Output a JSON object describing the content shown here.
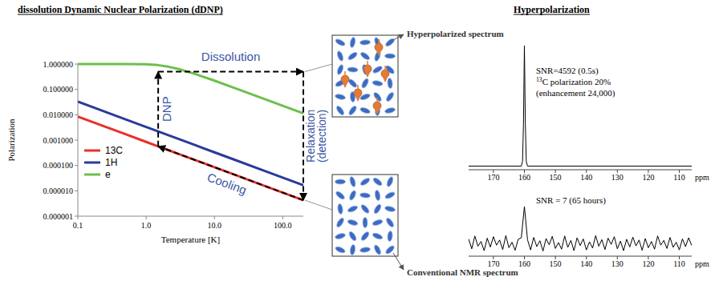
{
  "chart_data": [
    {
      "type": "line",
      "title": "dissolution Dynamic Nuclear Polarization (dDNP)",
      "xlabel": "Temperature [K]",
      "ylabel": "Polarization",
      "log": true,
      "grid": false,
      "legend": "left",
      "x": [
        0.1,
        0.5,
        1,
        1.5,
        2,
        3,
        5,
        10,
        20,
        50,
        100,
        200
      ],
      "series": [
        {
          "name": "13C",
          "color": "#e8312a",
          "values": [
            0.0085,
            0.0017,
            0.00085,
            0.000567,
            0.000425,
            0.000283,
            0.00017,
            8.5e-05,
            4.25e-05,
            1.7e-05,
            8.5e-06,
            4.25e-06
          ]
        },
        {
          "name": "1H",
          "color": "#2b3a9a",
          "values": [
            0.033,
            0.0066,
            0.0033,
            0.0022,
            0.00165,
            0.0011,
            0.00066,
            0.00033,
            0.000165,
            6.6e-05,
            3.3e-05,
            1.65e-05
          ]
        },
        {
          "name": "e",
          "color": "#6cc04a",
          "values": [
            1,
            1,
            0.978,
            0.905,
            0.809,
            0.635,
            0.422,
            0.221,
            0.112,
            0.045,
            0.0225,
            0.01125
          ]
        }
      ],
      "xlim": [
        0.1,
        200
      ],
      "xticks": [
        0.1,
        {
          "value": 1,
          "label": "1.0"
        },
        {
          "value": 10,
          "label": "10.0"
        },
        {
          "value": 100,
          "label": "100.0"
        }
      ],
      "ylim": [
        1e-06,
        1
      ],
      "yticks": [
        {
          "value": 1,
          "label": "1.000000"
        },
        {
          "value": 0.1,
          "label": "0.100000"
        },
        {
          "value": 0.01,
          "label": "0.010000"
        },
        {
          "value": 0.001,
          "label": "0.001000"
        },
        {
          "value": 0.0001,
          "label": "0.000100"
        },
        {
          "value": 1e-05,
          "label": "0.000010"
        },
        {
          "value": 1e-06,
          "label": "0.000001"
        }
      ],
      "cycle": {
        "x": [
          1.5,
          1.5,
          200,
          200
        ],
        "y": [
          0.000567,
          0.5,
          0.5,
          4.25e-06
        ]
      },
      "annotations": [
        "DNP",
        "Dissolution",
        "Relaxation (detection)",
        "Cooling"
      ]
    },
    {
      "type": "line",
      "xlabel": "ppm",
      "tick_labels": "x",
      "xlim": [
        178,
        106
      ],
      "xticks": [
        170,
        160,
        150,
        140,
        130,
        120,
        110
      ],
      "ylim": [
        -0.03,
        1
      ],
      "x": [
        178,
        161,
        160.6,
        160.3,
        160,
        159.7,
        159.4,
        159,
        106
      ],
      "series": [
        {
          "color": "#000000",
          "values": [
            0,
            0,
            0.04,
            0.35,
            1,
            0.35,
            0.04,
            0,
            0
          ]
        }
      ],
      "annotations": [
        "SNR=4592 (0.5s)",
        "13C polarization 20%",
        "(enhancement 24,000)"
      ]
    },
    {
      "type": "line",
      "xlabel": "ppm",
      "tick_labels": "x",
      "xlim": [
        178,
        106
      ],
      "xticks": [
        170,
        160,
        150,
        140,
        130,
        120,
        110
      ],
      "ylim": [
        -0.35,
        1
      ],
      "x": [
        178,
        177,
        176,
        175,
        174,
        173,
        172,
        171,
        170,
        169,
        168,
        167,
        166,
        165,
        164,
        163,
        162,
        161,
        160,
        159,
        158,
        157,
        156,
        155,
        154,
        153,
        152,
        151,
        150,
        149,
        148,
        147,
        146,
        145,
        144,
        143,
        142,
        141,
        140,
        139,
        138,
        137,
        136,
        135,
        134,
        133,
        132,
        131,
        130,
        129,
        128,
        127,
        126,
        125,
        124,
        123,
        122,
        121,
        120,
        119,
        118,
        117,
        116,
        115,
        114,
        113,
        112,
        111,
        110,
        109,
        108,
        107,
        106
      ],
      "series": [
        {
          "color": "#000000",
          "values": [
            0.12,
            -0.15,
            0.2,
            -0.08,
            0.05,
            -0.2,
            0.14,
            -0.1,
            0.18,
            -0.05,
            0.09,
            -0.17,
            0.21,
            -0.12,
            0.03,
            -0.19,
            0.11,
            0.15,
            1,
            0.1,
            -0.18,
            0.16,
            -0.09,
            0.07,
            -0.21,
            0.13,
            -0.04,
            0.19,
            -0.14,
            0.02,
            -0.16,
            0.2,
            -0.11,
            0.08,
            -0.2,
            0.15,
            -0.06,
            0.12,
            -0.18,
            0.04,
            -0.13,
            0.21,
            -0.08,
            0.1,
            -0.17,
            0.14,
            -0.03,
            0.18,
            -0.15,
            0.06,
            -0.2,
            0.11,
            -0.1,
            0.17,
            -0.07,
            0.09,
            -0.19,
            0.13,
            -0.12,
            0.05,
            -0.16,
            0.2,
            -0.05,
            0.08,
            -0.14,
            0.16,
            -0.11,
            0.03,
            -0.18,
            0.12,
            -0.09,
            0.15,
            -0.06
          ]
        }
      ],
      "annotations": [
        "SNR = 7 (65 hours)"
      ]
    }
  ],
  "hyperpolarization": {
    "title": "Hyperpolarization",
    "labels": [
      "Hyperpolarized spectrum",
      "Conventional NMR spectrum"
    ]
  }
}
